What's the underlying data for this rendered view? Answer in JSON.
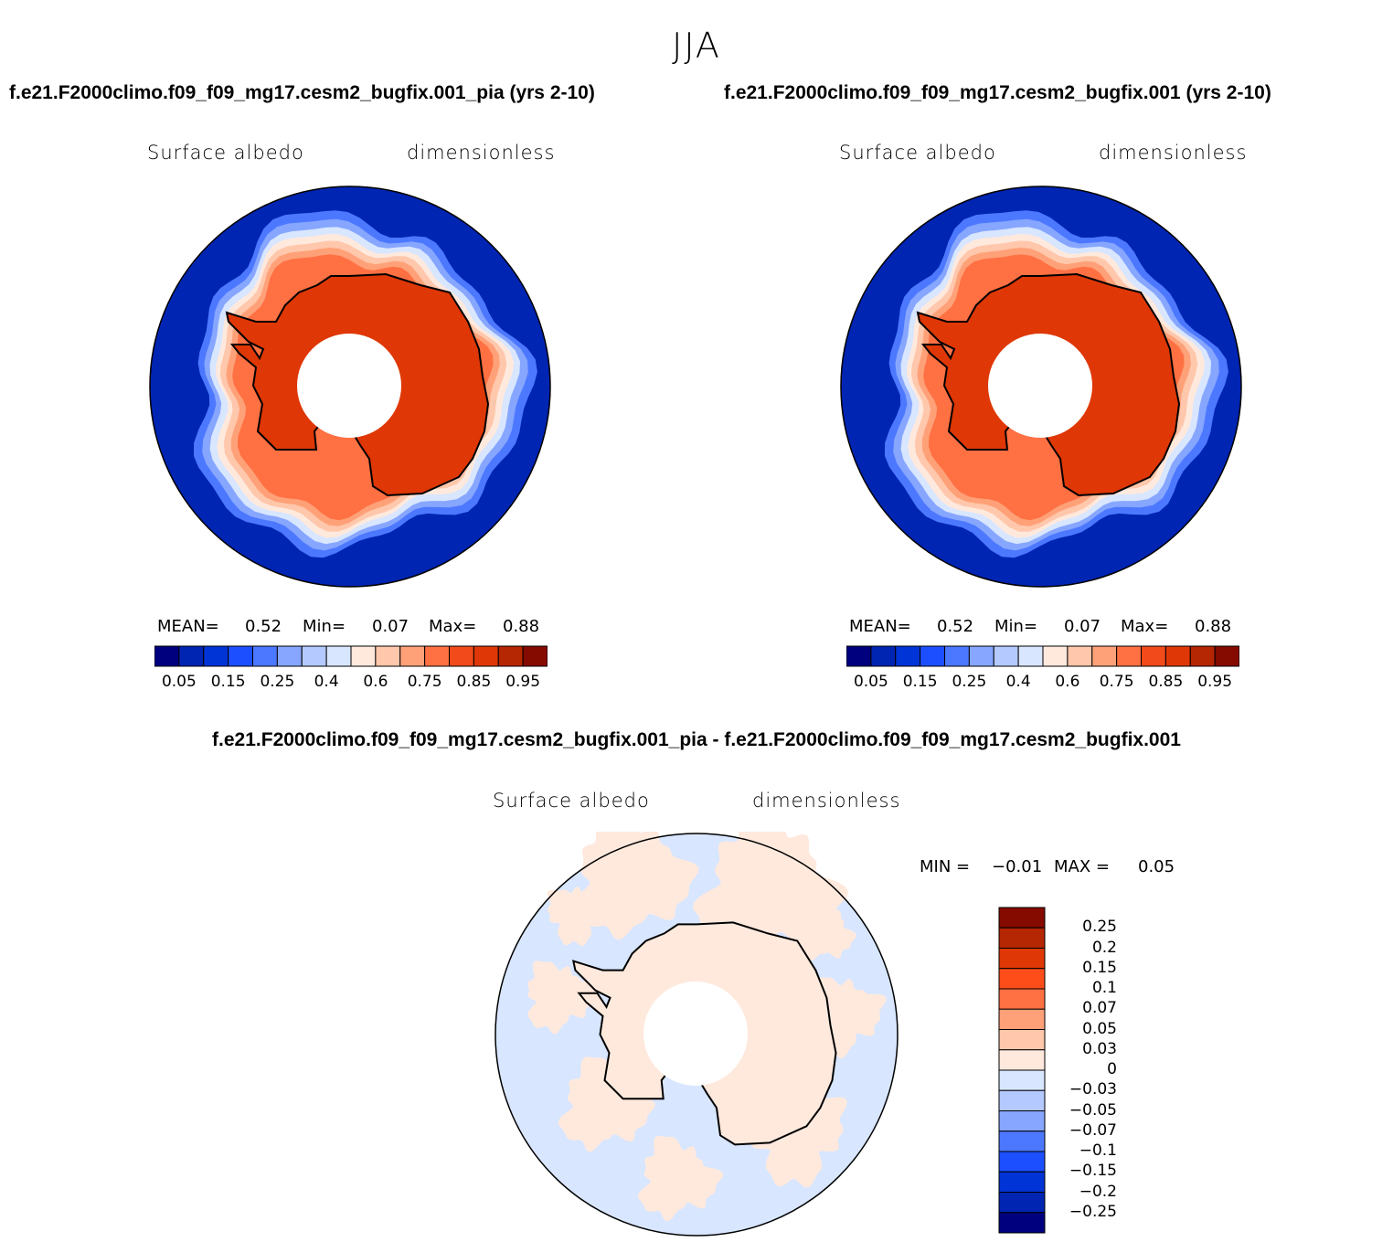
{
  "figure": {
    "season": "JJA",
    "panels": [
      {
        "id": "pia",
        "case_title": "f.e21.F2000climo.f09_f09_mg17.cesm2_bugfix.001_pia (yrs 2-10)",
        "variable": "Surface albedo",
        "units": "dimensionless",
        "stats": {
          "mean_label": "MEAN=",
          "mean": "0.52",
          "min_label": "Min=",
          "min": "0.07",
          "max_label": "Max=",
          "max": "0.88"
        }
      },
      {
        "id": "control",
        "case_title": "f.e21.F2000climo.f09_f09_mg17.cesm2_bugfix.001 (yrs 2-10)",
        "variable": "Surface albedo",
        "units": "dimensionless",
        "stats": {
          "mean_label": "MEAN=",
          "mean": "0.52",
          "min_label": "Min=",
          "min": "0.07",
          "max_label": "Max=",
          "max": "0.88"
        }
      },
      {
        "id": "diff",
        "case_title": "f.e21.F2000climo.f09_f09_mg17.cesm2_bugfix.001_pia - f.e21.F2000climo.f09_f09_mg17.cesm2_bugfix.001",
        "variable": "Surface albedo",
        "units": "dimensionless",
        "stats": {
          "min_label": "MIN =",
          "min": "−0.01",
          "max_label": "MAX =",
          "max": "0.05"
        }
      }
    ]
  },
  "colorbars": {
    "absolute": {
      "colors": [
        "#00007f",
        "#0025b3",
        "#0034d6",
        "#1b4fff",
        "#4c78ff",
        "#86a6ff",
        "#b4c9ff",
        "#d8e6ff",
        "#ffe9dd",
        "#ffc7ab",
        "#ffa178",
        "#ff7043",
        "#f24a1a",
        "#df3705",
        "#b52602",
        "#850a00"
      ],
      "tick_labels": [
        "0.05",
        "0.15",
        "0.25",
        "0.4",
        "0.6",
        "0.75",
        "0.85",
        "0.95"
      ]
    },
    "difference": {
      "colors_top_to_bottom": [
        "#850a00",
        "#b52602",
        "#df3705",
        "#ff4d1a",
        "#ff7043",
        "#ffa178",
        "#ffc7ab",
        "#ffe9dd",
        "#d8e6ff",
        "#b4c9ff",
        "#86a6ff",
        "#4c78ff",
        "#1b4fff",
        "#0034d6",
        "#0025b3",
        "#00007f"
      ],
      "tick_labels_top_to_bottom": [
        "0.25",
        "0.2",
        "0.15",
        "0.1",
        "0.07",
        "0.05",
        "0.03",
        "0",
        "−0.03",
        "−0.05",
        "−0.07",
        "−0.1",
        "−0.15",
        "−0.2",
        "−0.25"
      ]
    }
  },
  "map_colors": {
    "ocean_open": "#0025b3",
    "ice_edge": [
      "#4c78ff",
      "#86a6ff",
      "#d8e6ff",
      "#ffe9dd",
      "#ffc7ab",
      "#ffa178"
    ],
    "sea_ice": "#ff7043",
    "ice_sheet": "#df3705",
    "diff_positive": "#ffe9dd",
    "diff_negative": "#d8e6ff",
    "pole_hole": "#ffffff"
  }
}
